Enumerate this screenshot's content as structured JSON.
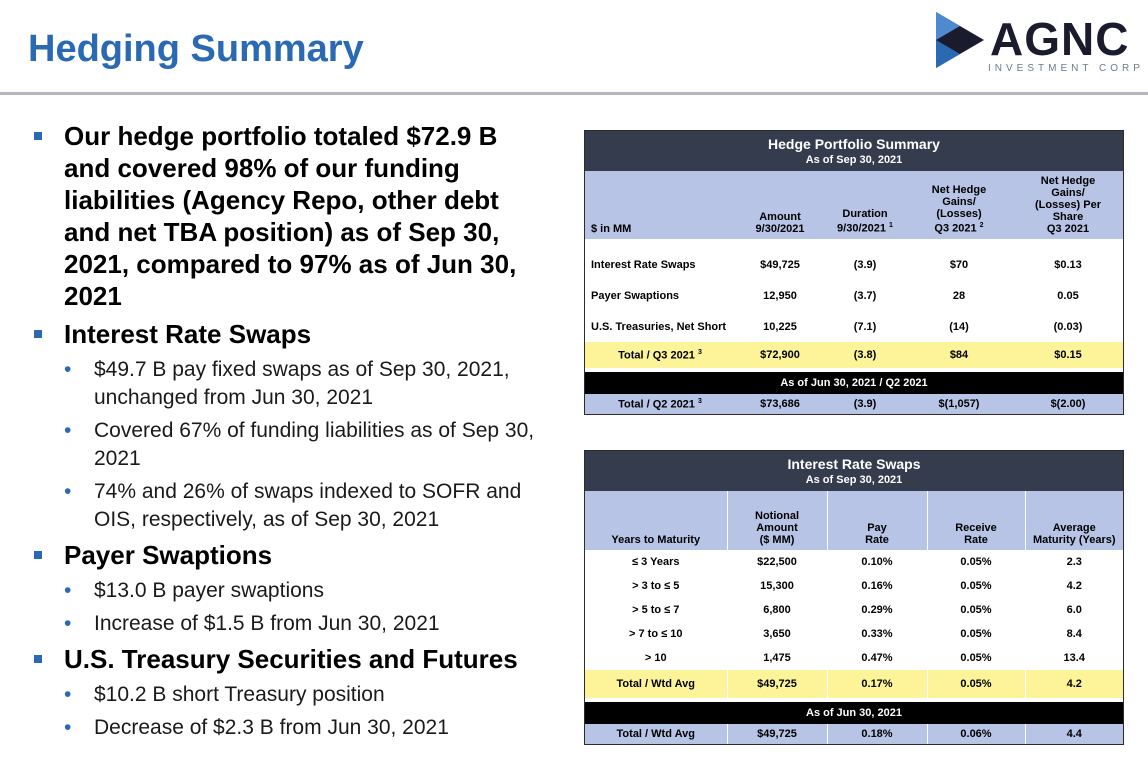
{
  "title": "Hedging Summary",
  "logo": {
    "word": "AGNC",
    "sub": "INVESTMENT CORP"
  },
  "left": {
    "intro": "Our hedge portfolio totaled $72.9 B and covered 98% of our funding liabilities (Agency Repo, other debt and net TBA position) as of Sep 30, 2021, compared to 97% as of Jun 30, 2021",
    "sections": [
      {
        "heading": "Interest Rate Swaps",
        "bullets": [
          "$49.7 B pay fixed swaps as of Sep 30, 2021, unchanged from Jun 30, 2021",
          "Covered 67% of funding liabilities as of Sep 30, 2021",
          "74% and 26% of swaps indexed to SOFR and OIS, respectively, as of Sep 30, 2021"
        ]
      },
      {
        "heading": "Payer Swaptions",
        "bullets": [
          "$13.0 B payer swaptions",
          "Increase of $1.5 B from Jun 30, 2021"
        ]
      },
      {
        "heading": "U.S. Treasury Securities and Futures",
        "bullets": [
          "$10.2 B short Treasury position",
          "Decrease of $2.3 B from Jun 30, 2021"
        ]
      }
    ]
  },
  "hedge_table": {
    "title": "Hedge Portfolio Summary",
    "subtitle": "As of Sep 30, 2021",
    "headers": {
      "label": "$ in MM",
      "amount_1": "Amount",
      "amount_2": "9/30/2021",
      "duration_1": "Duration",
      "duration_2": "9/30/2021",
      "duration_sup": "1",
      "gains_1": "Net Hedge",
      "gains_2": "Gains/",
      "gains_3": "(Losses)",
      "gains_4": "Q3 2021",
      "gains_sup": "2",
      "share_1": "Net Hedge",
      "share_2": "Gains/",
      "share_3": "(Losses) Per",
      "share_4": "Share",
      "share_5": "Q3 2021"
    },
    "rows": [
      {
        "label": "Interest Rate Swaps",
        "amount": "$49,725",
        "duration": "(3.9)",
        "gains": "$70",
        "per_share": "$0.13"
      },
      {
        "label": "Payer Swaptions",
        "amount": "12,950",
        "duration": "(3.7)",
        "gains": "28",
        "per_share": "0.05"
      },
      {
        "label": "U.S. Treasuries, Net Short",
        "amount": "10,225",
        "duration": "(7.1)",
        "gains": "(14)",
        "per_share": "(0.03)"
      }
    ],
    "total": {
      "label": "Total / Q3 2021",
      "sup": "3",
      "amount": "$72,900",
      "duration": "(3.8)",
      "gains": "$84",
      "per_share": "$0.15"
    },
    "prior_bar": "As of Jun 30, 2021 / Q2 2021",
    "prior": {
      "label": "Total / Q2 2021",
      "sup": "3",
      "amount": "$73,686",
      "duration": "(3.9)",
      "gains": "$(1,057)",
      "per_share": "$(2.00)"
    }
  },
  "swaps_table": {
    "title": "Interest Rate Swaps",
    "subtitle": "As of Sep 30, 2021",
    "headers": {
      "years": "Years to Maturity",
      "notional_1": "Notional",
      "notional_2": "Amount",
      "notional_3": "($ MM)",
      "pay_1": "Pay",
      "pay_2": "Rate",
      "receive_1": "Receive",
      "receive_2": "Rate",
      "avg_1": "Average",
      "avg_2": "Maturity (Years)"
    },
    "rows": [
      {
        "years": "≤ 3 Years",
        "notional": "$22,500",
        "pay": "0.10%",
        "receive": "0.05%",
        "avg": "2.3"
      },
      {
        "years": "> 3 to ≤ 5",
        "notional": "15,300",
        "pay": "0.16%",
        "receive": "0.05%",
        "avg": "4.2"
      },
      {
        "years": "> 5 to ≤ 7",
        "notional": "6,800",
        "pay": "0.29%",
        "receive": "0.05%",
        "avg": "6.0"
      },
      {
        "years": "> 7 to ≤ 10",
        "notional": "3,650",
        "pay": "0.33%",
        "receive": "0.05%",
        "avg": "8.4"
      },
      {
        "years": "> 10",
        "notional": "1,475",
        "pay": "0.47%",
        "receive": "0.05%",
        "avg": "13.4"
      }
    ],
    "total": {
      "years": "Total / Wtd Avg",
      "notional": "$49,725",
      "pay": "0.17%",
      "receive": "0.05%",
      "avg": "4.2"
    },
    "prior_bar": "As of Jun 30, 2021",
    "prior": {
      "years": "Total / Wtd Avg",
      "notional": "$49,725",
      "pay": "0.18%",
      "receive": "0.06%",
      "avg": "4.4"
    }
  }
}
